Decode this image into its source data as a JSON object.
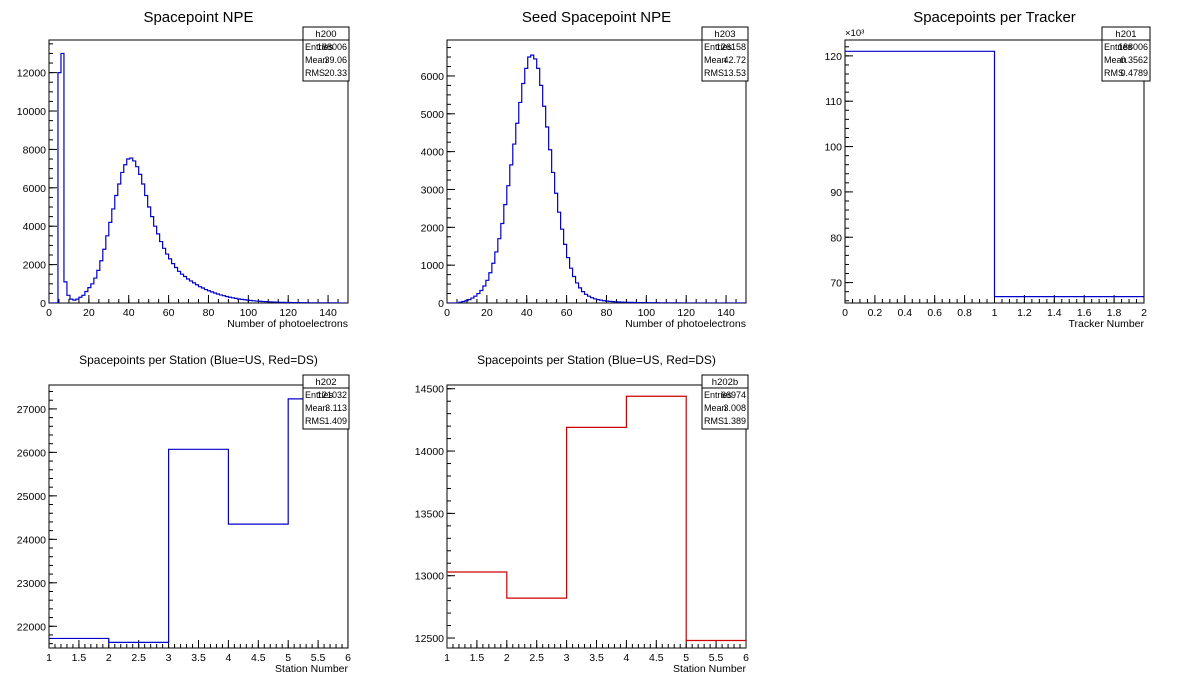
{
  "chart_data": [
    {
      "id": "p1",
      "type": "histogram",
      "title": "Spacepoint NPE",
      "xlabel": "Number of photoelectrons",
      "ylabel": "",
      "xlim": [
        0,
        150
      ],
      "ylim": [
        0,
        13700
      ],
      "xticks": [
        0,
        20,
        40,
        60,
        80,
        100,
        120,
        140
      ],
      "yticks": [
        0,
        2000,
        4000,
        6000,
        8000,
        10000,
        12000
      ],
      "x_minor": 5,
      "y_minor": 500,
      "multiplier": "",
      "line_color": "#0000cc",
      "hist": {
        "bin_width": 1.5,
        "start": 0,
        "values": [
          0,
          0,
          0,
          12000,
          13000,
          1100,
          400,
          200,
          150,
          200,
          300,
          400,
          600,
          800,
          1000,
          1300,
          1700,
          2200,
          2800,
          3500,
          4200,
          4900,
          5600,
          6200,
          6800,
          7200,
          7500,
          7550,
          7400,
          7100,
          6700,
          6200,
          5600,
          5000,
          4500,
          4000,
          3600,
          3200,
          2850,
          2550,
          2300,
          2050,
          1850,
          1650,
          1500,
          1380,
          1250,
          1150,
          1050,
          950,
          850,
          780,
          700,
          640,
          580,
          520,
          470,
          420,
          380,
          340,
          300,
          270,
          240,
          210,
          190,
          170,
          150,
          130,
          115,
          100,
          90,
          80,
          70,
          62,
          55,
          48,
          42,
          37,
          33,
          29,
          26,
          23,
          20,
          18,
          16,
          14,
          12,
          11,
          10,
          9,
          8,
          7,
          6,
          6,
          5,
          5,
          4,
          4,
          3,
          3
        ]
      },
      "stats": {
        "name": "h200",
        "rows": [
          {
            "label": "Entries",
            "value": "188006"
          },
          {
            "label": "Mean",
            "value": "39.06"
          },
          {
            "label": "RMS",
            "value": "20.33"
          }
        ]
      }
    },
    {
      "id": "p2",
      "type": "histogram",
      "title": "Seed Spacepoint NPE",
      "xlabel": "Number of photoelectrons",
      "ylabel": "",
      "xlim": [
        0,
        150
      ],
      "ylim": [
        0,
        6950
      ],
      "xticks": [
        0,
        20,
        40,
        60,
        80,
        100,
        120,
        140
      ],
      "yticks": [
        0,
        1000,
        2000,
        3000,
        4000,
        5000,
        6000
      ],
      "x_minor": 5,
      "y_minor": 250,
      "multiplier": "",
      "line_color": "#0000cc",
      "hist": {
        "bin_width": 1.5,
        "start": 0,
        "values": [
          0,
          0,
          0,
          0,
          20,
          40,
          60,
          90,
          130,
          180,
          250,
          330,
          450,
          600,
          800,
          1050,
          1350,
          1700,
          2100,
          2600,
          3100,
          3650,
          4200,
          4750,
          5300,
          5800,
          6200,
          6500,
          6550,
          6450,
          6200,
          5750,
          5200,
          4650,
          4050,
          3450,
          2900,
          2400,
          1950,
          1550,
          1200,
          920,
          700,
          530,
          400,
          300,
          230,
          180,
          140,
          110,
          90,
          75,
          60,
          50,
          42,
          36,
          31,
          27,
          24,
          21,
          18,
          16,
          14,
          12,
          11,
          10,
          9,
          8,
          7,
          6,
          6,
          5,
          5,
          4,
          4,
          3,
          3,
          3,
          2,
          2,
          2,
          2,
          1,
          1,
          1,
          1,
          1,
          1,
          1,
          0,
          0,
          0,
          0,
          0,
          0,
          0,
          0,
          0,
          0,
          0
        ]
      },
      "stats": {
        "name": "h203",
        "rows": [
          {
            "label": "Entries",
            "value": "126158"
          },
          {
            "label": "Mean",
            "value": "42.72"
          },
          {
            "label": "RMS",
            "value": "13.53"
          }
        ]
      }
    },
    {
      "id": "p3",
      "type": "histogram",
      "title": "Spacepoints per Tracker",
      "xlabel": "Tracker Number",
      "ylabel": "",
      "xlim": [
        0,
        2
      ],
      "ylim": [
        65.5,
        123.5
      ],
      "xticks": [
        0,
        0.2,
        0.4,
        0.6,
        0.8,
        1,
        1.2,
        1.4,
        1.6,
        1.8,
        2
      ],
      "yticks": [
        70,
        80,
        90,
        100,
        110,
        120
      ],
      "x_minor": 0.05,
      "y_minor": 2,
      "multiplier": "×10³",
      "line_color": "#0000cc",
      "hist": {
        "edges": [
          0,
          1,
          2
        ],
        "values": [
          121.0,
          66.9
        ]
      },
      "stats": {
        "name": "h201",
        "rows": [
          {
            "label": "Entries",
            "value": "188006"
          },
          {
            "label": "Mean",
            "value": "0.3562"
          },
          {
            "label": "RMS",
            "value": "0.4789"
          }
        ]
      }
    },
    {
      "id": "p4",
      "type": "histogram",
      "title": "Spacepoints per Station (Blue=US, Red=DS)",
      "xlabel": "Station Number",
      "ylabel": "",
      "xlim": [
        1,
        6
      ],
      "ylim": [
        21500,
        27550
      ],
      "xticks": [
        1,
        1.5,
        2,
        2.5,
        3,
        3.5,
        4,
        4.5,
        5,
        5.5,
        6
      ],
      "yticks": [
        22000,
        23000,
        24000,
        25000,
        26000,
        27000
      ],
      "x_minor": 0.1,
      "y_minor": 200,
      "multiplier": "",
      "line_color": "#0000cc",
      "hist": {
        "edges": [
          1,
          2,
          3,
          4,
          5,
          6
        ],
        "values": [
          21720,
          21630,
          26070,
          24350,
          27230
        ]
      },
      "stats": {
        "name": "h202",
        "rows": [
          {
            "label": "Entries",
            "value": "121032"
          },
          {
            "label": "Mean",
            "value": "3.113"
          },
          {
            "label": "RMS",
            "value": "1.409"
          }
        ]
      }
    },
    {
      "id": "p5",
      "type": "histogram",
      "title": "Spacepoints per Station (Blue=US, Red=DS)",
      "xlabel": "Station Number",
      "ylabel": "",
      "xlim": [
        1,
        6
      ],
      "ylim": [
        12420,
        14530
      ],
      "xticks": [
        1,
        1.5,
        2,
        2.5,
        3,
        3.5,
        4,
        4.5,
        5,
        5.5,
        6
      ],
      "yticks": [
        12500,
        13000,
        13500,
        14000,
        14500
      ],
      "x_minor": 0.1,
      "y_minor": 100,
      "multiplier": "",
      "line_color": "#cc0000",
      "hist": {
        "edges": [
          1,
          2,
          3,
          4,
          5,
          6
        ],
        "values": [
          13030,
          12820,
          14190,
          14440,
          12480
        ]
      },
      "stats": {
        "name": "h202b",
        "rows": [
          {
            "label": "Entries",
            "value": "66974"
          },
          {
            "label": "Mean",
            "value": "3.008"
          },
          {
            "label": "RMS",
            "value": "1.389"
          }
        ]
      }
    }
  ]
}
